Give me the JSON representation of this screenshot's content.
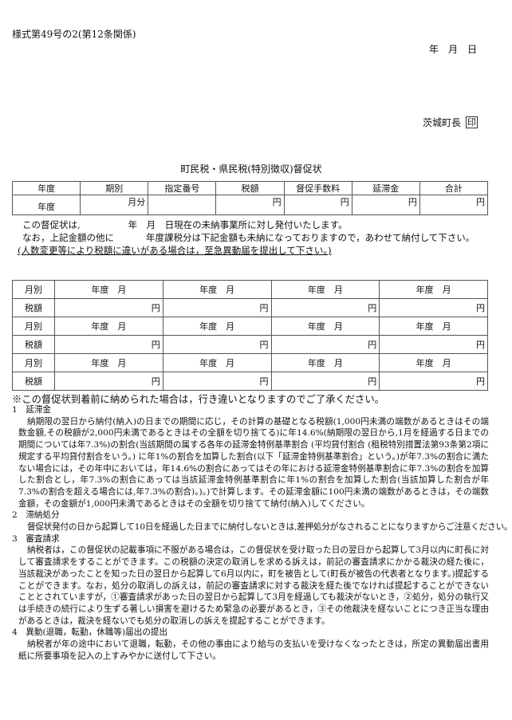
{
  "header": {
    "form_number": "様式第49号の2(第12条関係)",
    "date": "年　月　日",
    "issuer": "茨城町長",
    "seal": "印"
  },
  "title": "町民税・県民税(特別徴収)督促状",
  "summary_table": {
    "headers": [
      "年度",
      "期別",
      "指定番号",
      "税額",
      "督促手数料",
      "延滞金",
      "合計"
    ],
    "row": [
      "年度",
      "月分",
      "",
      "円",
      "円",
      "円",
      "円"
    ]
  },
  "statements": {
    "line1_a": "この督促状は,",
    "line1_b": "年　月　日現在の未納事業所に対し発付いたします。",
    "line2_a": "なお，上記金額の他に",
    "line2_b": "年度課税分は下記金額も未納になっておりますので，あわせて納付して下さい。",
    "line3": "(人数変更等により税額に違いがある場合は，至急異動届を提出して下さい。)"
  },
  "monthly_table": {
    "month_label": "月別",
    "tax_label": "税額",
    "period_cell": "年度　月",
    "yen": "円",
    "rows": 3,
    "columns": 4
  },
  "notice": "※この督促状到着前に納められた場合は，行き違いとなりますのでご了承ください。",
  "notes": [
    {
      "heading": "1　延滞金",
      "body": "納期限の翌日から納付(納入)の日までの期間に応じ，その計算の基礎となる税額(1,000円未満の端数があるときはその端数金額,その税額が2,000円未満であるときはその全額を切り捨てる)に年14.6%(納期限の翌日から,1月を経過する日までの期間については年7.3%)の割合(当該期間の属する各年の延滞金特例基準割合 (平均貸付割合 (租税特別措置法第93条第2項に規定する平均貸付割合をいう。) に年1%の割合を加算した割合(以下「延滞金特例基準割合」という。)が年7.3%の割合に満たない場合には，その年中においては，年14.6%の割合にあってはその年における延滞金特例基準割合に年7.3%の割合を加算した割合とし，年7.3%の割合にあっては当該延滞金特例基準割合に年1%の割合を加算した割合(当該加算した割合が年7.3%の割合を超える場合には,年7.3%の割合)。)。)で計算します。その延滞金額に100円未満の端数があるときは，その端数金額，その金額が1,000円未満であるときはその全額を切り捨てて納付(納入)してください。"
    },
    {
      "heading": "2　滞納処分",
      "body": "督促状発付の日から起算して10日を経過した日までに納付しないときは,差押処分がなされることになりますからご注意ください。"
    },
    {
      "heading": "3　審査請求",
      "body": "納税者は，この督促状の記載事項に不服がある場合は，この督促状を受け取った日の翌日から起算して3月以内に町長に対して審査請求をすることができます。この税額の決定の取消しを求める訴えは，前記の審査請求にかかる裁決の経た後に，当該裁決があったことを知った日の翌日から起算して6月以内に，町を被告として(町長が被告の代表者となります。)提起することができます。なお，処分の取消しの訴えは，前記の審査請求に対する裁決を経た後でなければ提起することができないこととされていますが，①審査請求があった日の翌日から起算して3月を経過しても裁決がないとき，②処分，処分の執行又は手続きの続行により生ずる著しい損害を避けるため緊急の必要があるとき，③その他裁決を経ないことにつき正当な理由があるときは，裁決を経ないでも処分の取消しの訴えを提起することができます。"
    },
    {
      "heading": "4　異動(退職，転勤，休職等)届出の提出",
      "body": "納税者が年の途中において退職，転勤，その他の事由により給与の支払いを受けなくなったときは，所定の異動届出書用紙に所要事項を記入の上すみやかに送付して下さい。"
    }
  ]
}
